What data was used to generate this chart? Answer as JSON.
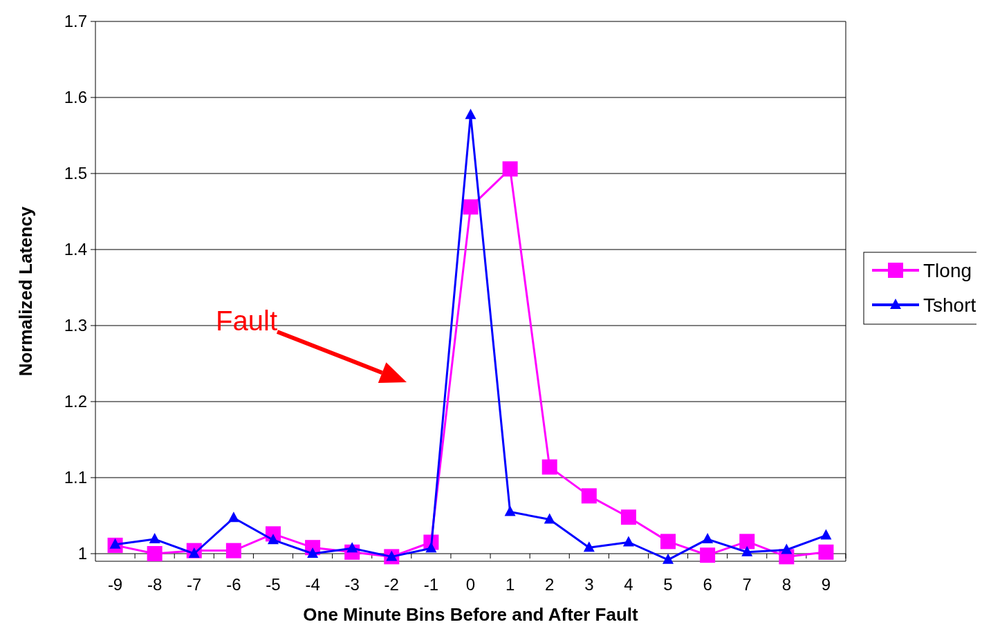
{
  "chart_data": {
    "type": "line",
    "xlabel": "One Minute Bins Before and After Fault",
    "ylabel": "Normalized Latency",
    "x": [
      -9,
      -8,
      -7,
      -6,
      -5,
      -4,
      -3,
      -2,
      -1,
      0,
      1,
      2,
      3,
      4,
      5,
      6,
      7,
      8,
      9
    ],
    "xlim": [
      -9.5,
      9.5
    ],
    "xticks": [
      -9,
      -8,
      -7,
      -6,
      -5,
      -4,
      -3,
      -2,
      -1,
      0,
      1,
      2,
      3,
      4,
      5,
      6,
      7,
      8,
      9
    ],
    "ylim": [
      0.99,
      1.7
    ],
    "yticks": [
      1,
      1.1,
      1.2,
      1.3,
      1.4,
      1.5,
      1.6,
      1.7
    ],
    "grid": "y",
    "legend": "right",
    "series": [
      {
        "name": "Tlong",
        "color": "#ff00ff",
        "marker": "square",
        "values": [
          1.011,
          1.0,
          1.004,
          1.004,
          1.026,
          1.008,
          1.002,
          0.996,
          1.015,
          1.456,
          1.506,
          1.114,
          1.076,
          1.048,
          1.016,
          0.998,
          1.016,
          0.996,
          1.002
        ]
      },
      {
        "name": "Tshort",
        "color": "#0000ff",
        "marker": "triangle",
        "values": [
          1.012,
          1.019,
          1.0,
          1.047,
          1.018,
          1.0,
          1.007,
          0.996,
          1.007,
          1.577,
          1.055,
          1.045,
          1.008,
          1.015,
          0.992,
          1.019,
          1.002,
          1.005,
          1.024
        ]
      }
    ],
    "annotations": [
      "Fault"
    ]
  }
}
